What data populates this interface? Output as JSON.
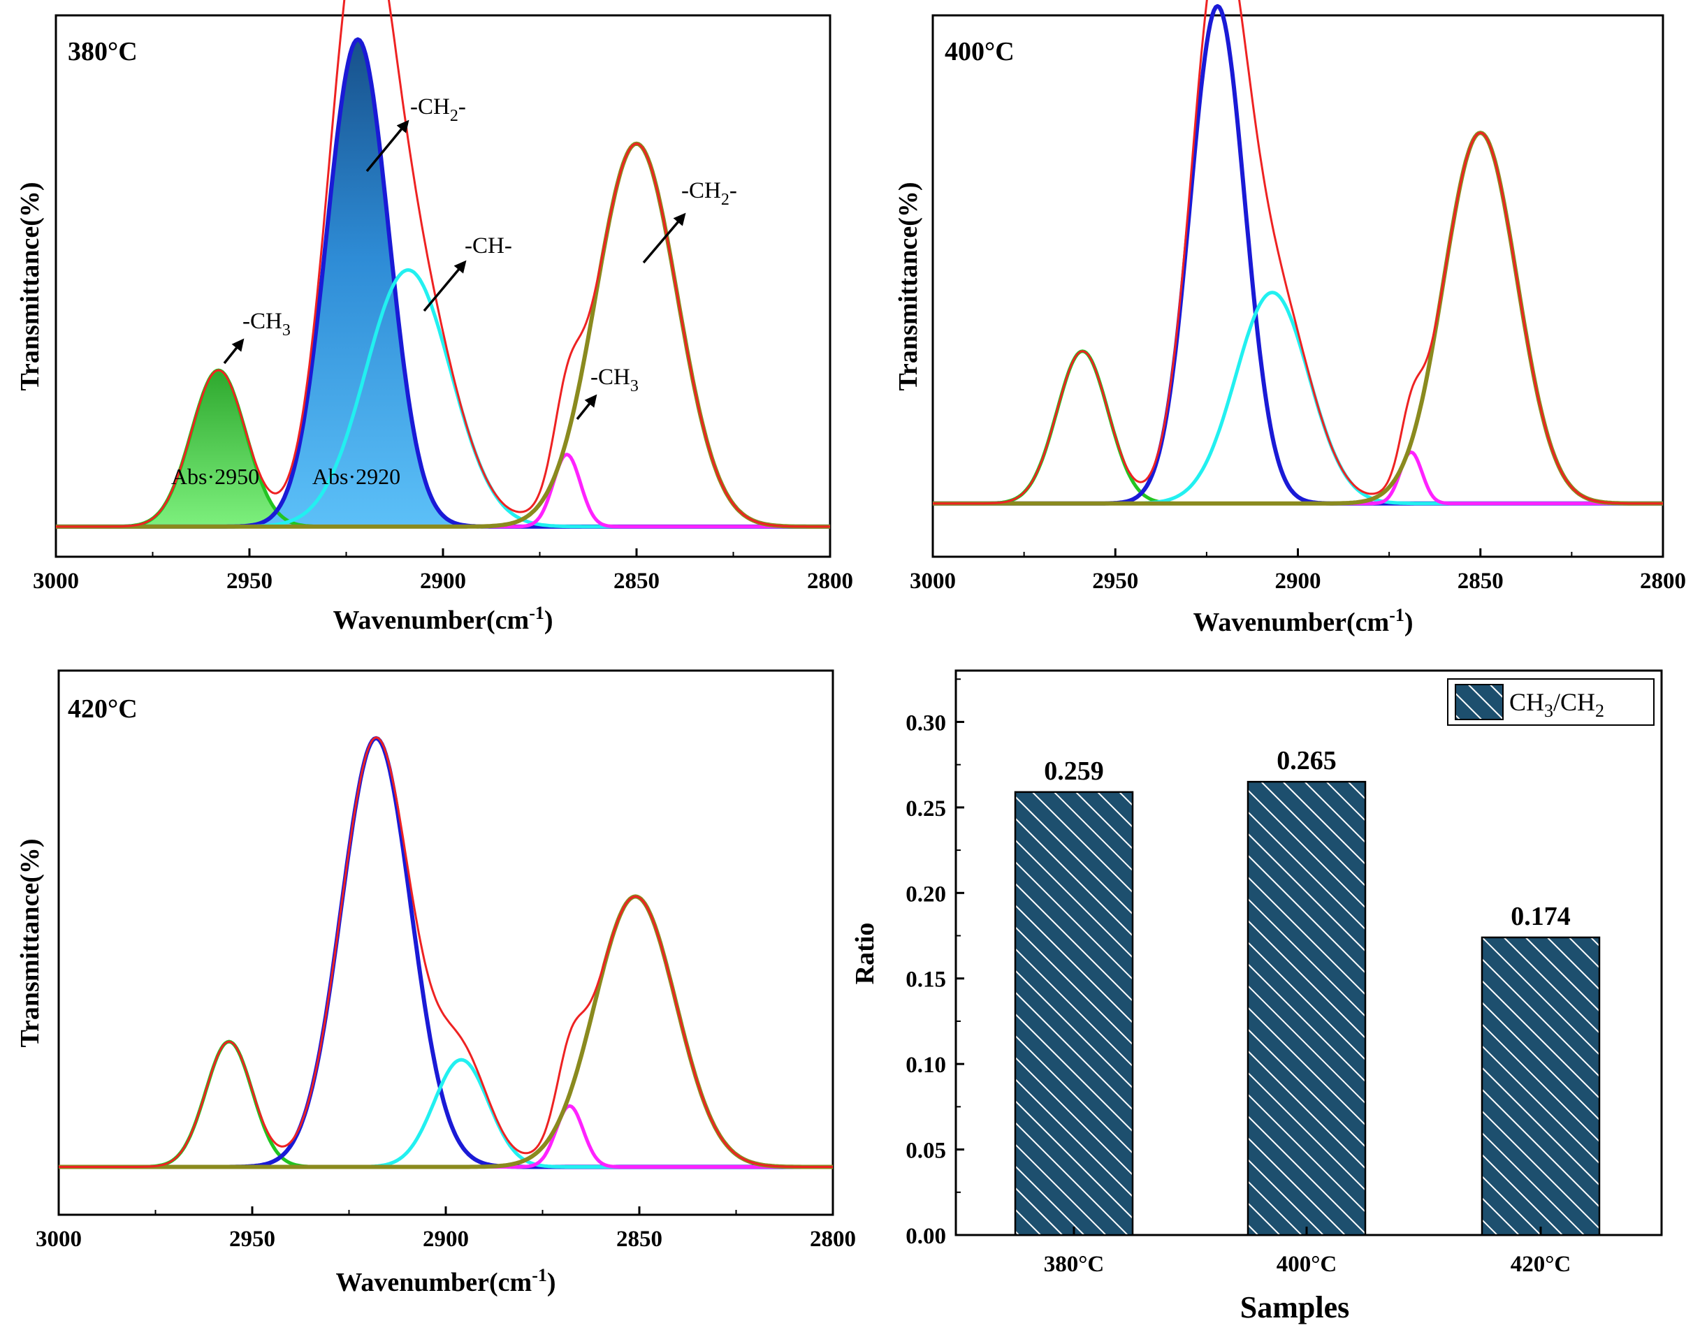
{
  "chart_data": [
    {
      "type": "line",
      "panel": "380C",
      "temp_label": "380°C",
      "xlabel": "Wavenumber(cm",
      "xlabel_sup": "-1",
      "xlabel_close": ")",
      "ylabel": "Transmittance(%)",
      "xlim": [
        3000,
        2800
      ],
      "xticks": [
        "3000",
        "2950",
        "2900",
        "2850",
        "2800"
      ],
      "baseline": 0.15,
      "peaks": [
        {
          "name": "-CH3",
          "center": 2958,
          "height": 0.78,
          "width": 7.0,
          "color": "#22c422",
          "fill": "green"
        },
        {
          "name": "-CH2-",
          "center": 2922,
          "height": 2.43,
          "width": 8.0,
          "color": "#1a1ad6",
          "fill": "blue"
        },
        {
          "name": "-CH-",
          "center": 2909,
          "height": 1.28,
          "width": 11.0,
          "color": "#22f0f0"
        },
        {
          "name": "-CH3",
          "center": 2868,
          "height": 0.36,
          "width": 3.5,
          "color": "#ff22ff"
        },
        {
          "name": "-CH2-",
          "center": 2850,
          "height": 1.91,
          "width": 10.5,
          "color": "#8a8a1e"
        }
      ],
      "annotations": [
        {
          "text": "-CH",
          "sub": "3",
          "trail": ""
        },
        {
          "text": "-CH",
          "sub": "2",
          "trail": "-"
        },
        {
          "text": "-CH-",
          "sub": "",
          "trail": ""
        },
        {
          "text": "-CH",
          "sub": "3",
          "trail": ""
        },
        {
          "text": "-CH",
          "sub": "2",
          "trail": "-"
        }
      ],
      "abs_labels": [
        "Abs·2950",
        "Abs·2920"
      ]
    },
    {
      "type": "line",
      "panel": "400C",
      "temp_label": "400°C",
      "xlabel": "Wavenumber(cm",
      "xlabel_sup": "-1",
      "xlabel_close": ")",
      "ylabel": "Transmittance(%)",
      "xlim": [
        3000,
        2800
      ],
      "xticks": [
        "3000",
        "2950",
        "2900",
        "2850",
        "2800"
      ],
      "baseline": 0.29,
      "peaks": [
        {
          "name": "-CH3",
          "center": 2959,
          "height": 0.83,
          "width": 7.0,
          "color": "#22c422"
        },
        {
          "name": "-CH2-",
          "center": 2922,
          "height": 2.71,
          "width": 7.5,
          "color": "#1a1ad6"
        },
        {
          "name": "-CH-",
          "center": 2907,
          "height": 1.15,
          "width": 10.0,
          "color": "#22f0f0"
        },
        {
          "name": "-CH3",
          "center": 2869,
          "height": 0.28,
          "width": 3.0,
          "color": "#ff22ff"
        },
        {
          "name": "-CH2-",
          "center": 2850,
          "height": 2.02,
          "width": 10.0,
          "color": "#8a8a1e"
        }
      ]
    },
    {
      "type": "line",
      "panel": "420C",
      "temp_label": "420°C",
      "xlabel": "Wavenumber(cm",
      "xlabel_sup": "-1",
      "xlabel_close": ")",
      "ylabel": "Transmittance(%)",
      "xlim": [
        3000,
        2800
      ],
      "xticks": [
        "3000",
        "2950",
        "2900",
        "2850",
        "2800"
      ],
      "baseline": 0.29,
      "peaks": [
        {
          "name": "-CH3",
          "center": 2956,
          "height": 0.76,
          "width": 6.0,
          "color": "#22c422"
        },
        {
          "name": "-CH2-",
          "center": 2918,
          "height": 2.6,
          "width": 9.0,
          "color": "#1a1ad6"
        },
        {
          "name": "-CH-",
          "center": 2896,
          "height": 0.65,
          "width": 7.0,
          "color": "#22f0f0"
        },
        {
          "name": "-CH3",
          "center": 2868,
          "height": 0.37,
          "width": 3.5,
          "color": "#ff22ff"
        },
        {
          "name": "-CH2-",
          "center": 2851,
          "height": 1.64,
          "width": 10.5,
          "color": "#8a8a1e"
        }
      ]
    },
    {
      "type": "bar",
      "panel": "ratio",
      "categories": [
        "380°C",
        "400°C",
        "420°C"
      ],
      "values": [
        0.259,
        0.265,
        0.174
      ],
      "value_labels": [
        "0.259",
        "0.265",
        "0.174"
      ],
      "xlabel": "Samples",
      "ylabel": "Ratio",
      "ylim": [
        0,
        0.33
      ],
      "yticks": [
        "0.00",
        "0.05",
        "0.10",
        "0.15",
        "0.20",
        "0.25",
        "0.30"
      ],
      "legend": {
        "text": "CH",
        "sub1": "3",
        "mid": "/CH",
        "sub2": "2",
        "placement": "top-right"
      },
      "bar_color": "#1d4f6e"
    }
  ]
}
